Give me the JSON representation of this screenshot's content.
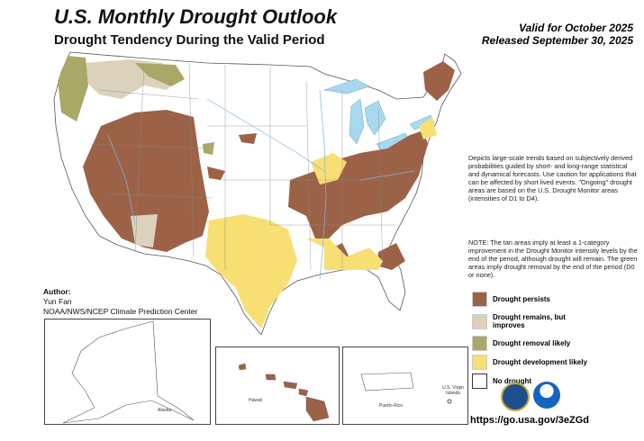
{
  "header": {
    "title": "U.S. Monthly Drought Outlook",
    "subtitle": "Drought Tendency During the Valid Period",
    "valid": "Valid for October 2025",
    "released": "Released September 30, 2025"
  },
  "description": "Depicts large-scale trends based on subjectively derived probabilities guided by short- and long-range statistical and dynamical forecasts. Use caution for applications that can be affected by short lived events. \"Ongoing\" drought areas are based on the U.S. Drought Monitor areas (intensities of D1 to D4).",
  "note": "NOTE: The tan areas imply at least a 1-category improvement in the Drought Monitor intensity levels by the end of the period, although drought will remain. The green areas imply drought removal by the end of the period (D0 or none).",
  "legend": [
    {
      "label": "Drought persists",
      "color": "#9c6247"
    },
    {
      "label": "Drought remains, but improves",
      "color": "#dcd2bb"
    },
    {
      "label": "Drought removal likely",
      "color": "#a9a866"
    },
    {
      "label": "Drought development likely",
      "color": "#f8df73"
    },
    {
      "label": "No drought",
      "color": "#ffffff"
    }
  ],
  "author": {
    "heading": "Author:",
    "name": "Yun Fan",
    "org": "NOAA/NWS/NCEP Climate Prediction Center"
  },
  "insets": {
    "alaska": "Alaska",
    "hawaii": "Hawaii",
    "puerto_rico": "Puerto Rico",
    "virgin_islands": "U.S. Virgin Islands"
  },
  "url": "https://go.usa.gov/3eZGd",
  "logos": [
    "doc-seal",
    "noaa-logo"
  ]
}
